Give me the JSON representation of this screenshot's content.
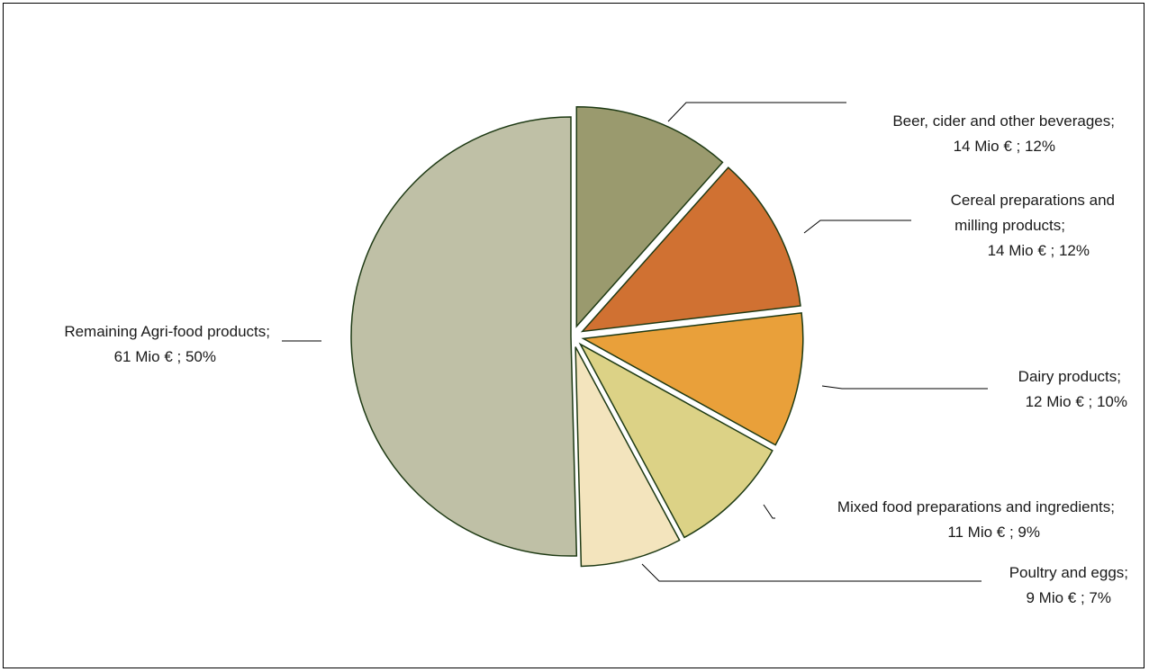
{
  "chart_data": {
    "type": "pie",
    "title": "",
    "unit": "Mio €",
    "slices": [
      {
        "name": "Remaining Agri-food products",
        "value": 61,
        "percent": 50,
        "label_line1": "Remaining Agri-food products;",
        "label_line2": "61 Mio € ; 50%",
        "color": "#bfc0a6"
      },
      {
        "name": "Beer, cider and other beverages",
        "value": 14,
        "percent": 12,
        "label_line1": "Beer, cider and other beverages;",
        "label_line2": "14 Mio € ; 12%",
        "color": "#9a9a6e"
      },
      {
        "name": "Cereal preparations and milling products",
        "value": 14,
        "percent": 12,
        "label_line1": "Cereal preparations and",
        "label_line1b": "milling products;",
        "label_line2": "14 Mio € ; 12%",
        "color": "#d07132"
      },
      {
        "name": "Dairy products",
        "value": 12,
        "percent": 10,
        "label_line1": "Dairy products;",
        "label_line2": "12 Mio € ; 10%",
        "color": "#e9a03a"
      },
      {
        "name": "Mixed food preparations and ingredients",
        "value": 11,
        "percent": 9,
        "label_line1": "Mixed food preparations and ingredients;",
        "label_line2": "11 Mio € ; 9%",
        "color": "#dcd286"
      },
      {
        "name": "Poultry and eggs",
        "value": 9,
        "percent": 7,
        "label_line1": "Poultry and eggs;",
        "label_line2": "9 Mio € ; 7%",
        "color": "#f3e4bd"
      }
    ],
    "outline_color": "#1e3a14",
    "legend": "none"
  }
}
